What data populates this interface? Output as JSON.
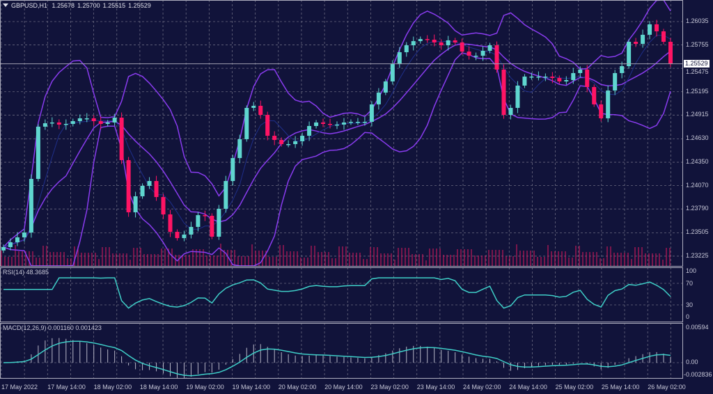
{
  "header": {
    "symbol": "GBPUSD,H1",
    "open": "1.25678",
    "high": "1.25700",
    "low": "1.25515",
    "close": "1.25529"
  },
  "current_price_label": "1.25529",
  "colors": {
    "background": "#11133a",
    "bull": "#5fd6cf",
    "bear": "#ff1464",
    "bands": "#8a3cf0",
    "ma": "#1f2f8a",
    "grid": "#6a6a80",
    "indicator_line": "#3fcfc8",
    "volume": "#c0185a"
  },
  "rsi": {
    "label": "RSI(14) 48.3685",
    "ticks": [
      "100",
      "70",
      "30",
      "0"
    ]
  },
  "macd": {
    "label": "MACD(12,26,9) 0.001160 0.001423",
    "ticks": [
      "0.00594",
      "0.00",
      "-0.002836"
    ]
  },
  "chart_data": {
    "type": "candlestick",
    "title": "GBPUSD,H1",
    "bar_interval": "2 hours (approximate resampling of H1 bars)",
    "closes": [
      1.23333,
      1.23391,
      1.2345,
      1.23508,
      1.2415,
      1.24776,
      1.24817,
      1.24826,
      1.24801,
      1.24809,
      1.24842,
      1.24876,
      1.24876,
      1.24842,
      1.24809,
      1.24826,
      1.24884,
      1.24375,
      1.2375,
      1.23942,
      1.24067,
      1.24125,
      1.23933,
      1.23725,
      1.23516,
      1.23441,
      1.23483,
      1.23575,
      1.23716,
      1.23708,
      1.23458,
      1.23792,
      1.24125,
      1.244,
      1.24626,
      1.25001,
      1.25026,
      1.24917,
      1.24667,
      1.24617,
      1.24567,
      1.24567,
      1.24601,
      1.24667,
      1.24784,
      1.24826,
      1.24809,
      1.24801,
      1.24801,
      1.24826,
      1.24834,
      1.24834,
      1.24834,
      1.25043,
      1.25184,
      1.25318,
      1.25526,
      1.25668,
      1.25751,
      1.25801,
      1.25826,
      1.25818,
      1.25785,
      1.25751,
      1.2581,
      1.25785,
      1.25676,
      1.25626,
      1.25626,
      1.25685,
      1.25751,
      1.2546,
      1.24917,
      1.25001,
      1.25268,
      1.25376,
      1.25376,
      1.25376,
      1.25376,
      1.25359,
      1.25318,
      1.25334,
      1.25418,
      1.2546,
      1.25251,
      1.25043,
      1.24876,
      1.25209,
      1.25418,
      1.25501,
      1.25793,
      1.25768,
      1.25877,
      1.26002,
      1.25918,
      1.25793,
      1.25529
    ],
    "y_ticks": [
      "1.26035",
      "1.25755",
      "1.25475",
      "1.25195",
      "1.24915",
      "1.24630",
      "1.24350",
      "1.24070",
      "1.23790",
      "1.23505",
      "1.23225"
    ],
    "ylim": [
      1.2315,
      1.264
    ],
    "x_ticks": [
      "17 May 2022",
      "17 May 14:00",
      "18 May 02:00",
      "18 May 14:00",
      "19 May 02:00",
      "19 May 14:00",
      "20 May 02:00",
      "20 May 14:00",
      "23 May 02:00",
      "23 May 14:00",
      "24 May 02:00",
      "24 May 14:00",
      "25 May 02:00",
      "25 May 14:00",
      "26 May 02:00"
    ],
    "grid": true,
    "overlays": [
      "Bollinger Bands",
      "Moving Average",
      "Volumes"
    ]
  }
}
